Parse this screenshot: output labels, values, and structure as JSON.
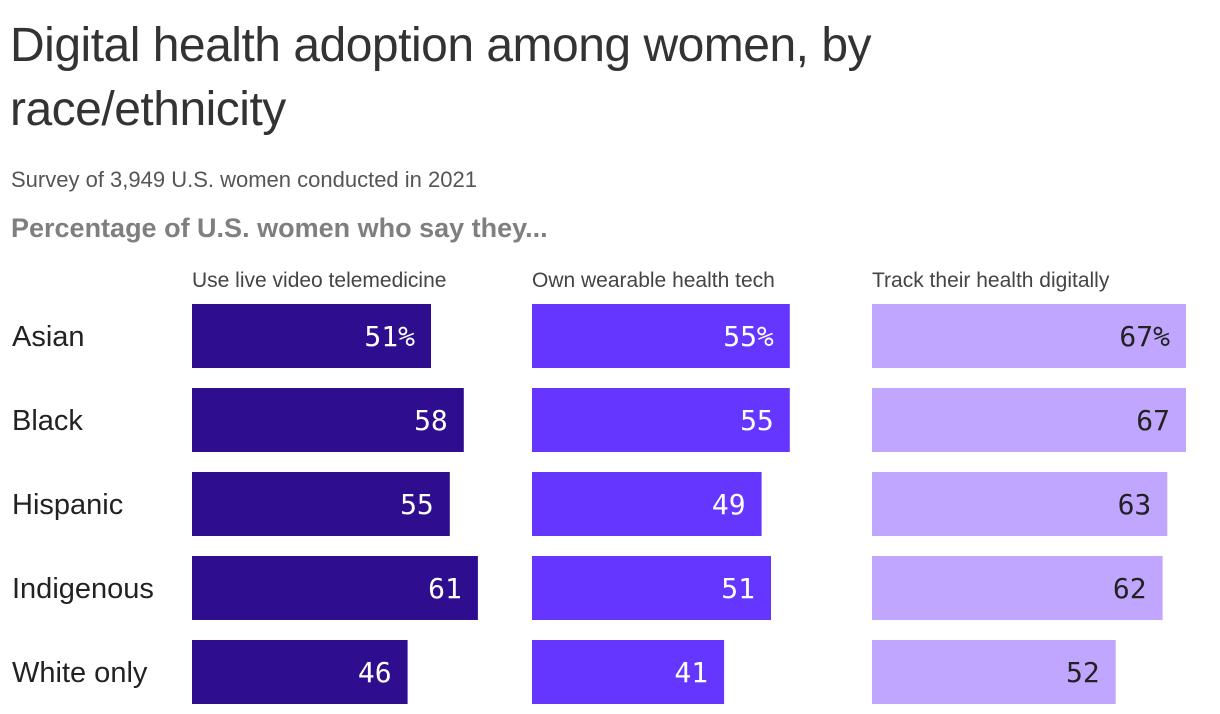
{
  "header": {
    "title": "Digital health adoption among women, by race/ethnicity",
    "subtitle": "Survey of 3,949 U.S. women conducted in 2021",
    "measure_label": "Percentage of U.S. women who say they..."
  },
  "chart_data": {
    "type": "bar",
    "categories": [
      "Asian",
      "Black",
      "Hispanic",
      "Indigenous",
      "White only"
    ],
    "series": [
      {
        "name": "Use live video telemedicine",
        "values": [
          51,
          58,
          55,
          61,
          46
        ],
        "labels": [
          "51%",
          "58",
          "55",
          "61",
          "46"
        ],
        "color": "#2e0e8f",
        "label_color": "#ffffff"
      },
      {
        "name": "Own wearable health tech",
        "values": [
          55,
          55,
          49,
          51,
          41
        ],
        "labels": [
          "55%",
          "55",
          "49",
          "51",
          "41"
        ],
        "color": "#6536ff",
        "label_color": "#ffffff"
      },
      {
        "name": "Track their health digitally",
        "values": [
          67,
          67,
          63,
          62,
          52
        ],
        "labels": [
          "67%",
          "67",
          "63",
          "62",
          "52"
        ],
        "color": "#c0a6ff",
        "label_color": "#222222"
      }
    ],
    "value_unit": "%",
    "xlim": [
      0,
      67
    ],
    "grid": false,
    "legend": "none"
  }
}
